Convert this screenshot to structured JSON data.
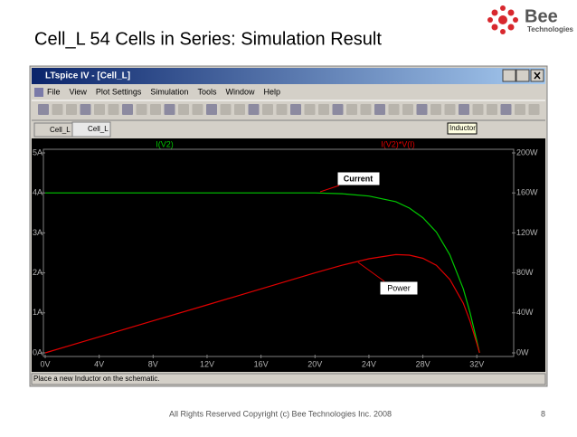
{
  "slide": {
    "title": "Cell_L 54 Cells in Series: Simulation Result",
    "logo_name": "Bee",
    "logo_sub": "Technologies",
    "footer": "All Rights Reserved Copyright (c) Bee Technologies Inc. 2008",
    "page_number": "8"
  },
  "window": {
    "title": "LTspice IV - [Cell_L]",
    "menu": [
      "File",
      "View",
      "Plot Settings",
      "Simulation",
      "Tools",
      "Window",
      "Help"
    ],
    "tabs": [
      "Cell_L",
      "Cell_L"
    ],
    "tooltip": "Inductor",
    "status": "Place a new Inductor on the schematic."
  },
  "chart_data": {
    "type": "line",
    "x": [
      0,
      4,
      8,
      12,
      16,
      20,
      22,
      24,
      26,
      27,
      28,
      29,
      30,
      31,
      31.5,
      32,
      32.2
    ],
    "series": [
      {
        "name": "I(V2)",
        "color": "#00c800",
        "axis": "y",
        "values": [
          4,
          4,
          4,
          4,
          4,
          4,
          3.98,
          3.92,
          3.78,
          3.62,
          3.38,
          3.02,
          2.45,
          1.6,
          1.0,
          0.3,
          0
        ]
      },
      {
        "name": "I(V2)*V(I)",
        "color": "#e00000",
        "axis": "y2",
        "values": [
          0,
          16,
          32,
          48,
          64,
          80,
          87.6,
          94.1,
          98.3,
          97.7,
          94.6,
          87.6,
          73.5,
          49.6,
          31.5,
          9.6,
          0
        ]
      }
    ],
    "xlim": [
      0,
      34.6
    ],
    "xticks": [
      {
        "value": 0,
        "label": "0V"
      },
      {
        "value": 4,
        "label": "4V"
      },
      {
        "value": 8,
        "label": "8V"
      },
      {
        "value": 12,
        "label": "12V"
      },
      {
        "value": 16,
        "label": "16V"
      },
      {
        "value": 20,
        "label": "20V"
      },
      {
        "value": 24,
        "label": "24V"
      },
      {
        "value": 28,
        "label": "28V"
      },
      {
        "value": 32,
        "label": "32V"
      }
    ],
    "ylim": [
      0,
      5
    ],
    "yticks": [
      {
        "value": 0,
        "label": "0A"
      },
      {
        "value": 1,
        "label": "1A"
      },
      {
        "value": 2,
        "label": "2A"
      },
      {
        "value": 3,
        "label": "3A"
      },
      {
        "value": 4,
        "label": "4A"
      },
      {
        "value": 5,
        "label": "5A"
      }
    ],
    "y2lim": [
      0,
      200
    ],
    "y2ticks": [
      {
        "value": 0,
        "label": "0W"
      },
      {
        "value": 40,
        "label": "40W"
      },
      {
        "value": 80,
        "label": "80W"
      },
      {
        "value": 120,
        "label": "120W"
      },
      {
        "value": 160,
        "label": "160W"
      },
      {
        "value": 200,
        "label": "200W"
      }
    ],
    "grid": false,
    "annotations": [
      "Current",
      "Power"
    ]
  }
}
